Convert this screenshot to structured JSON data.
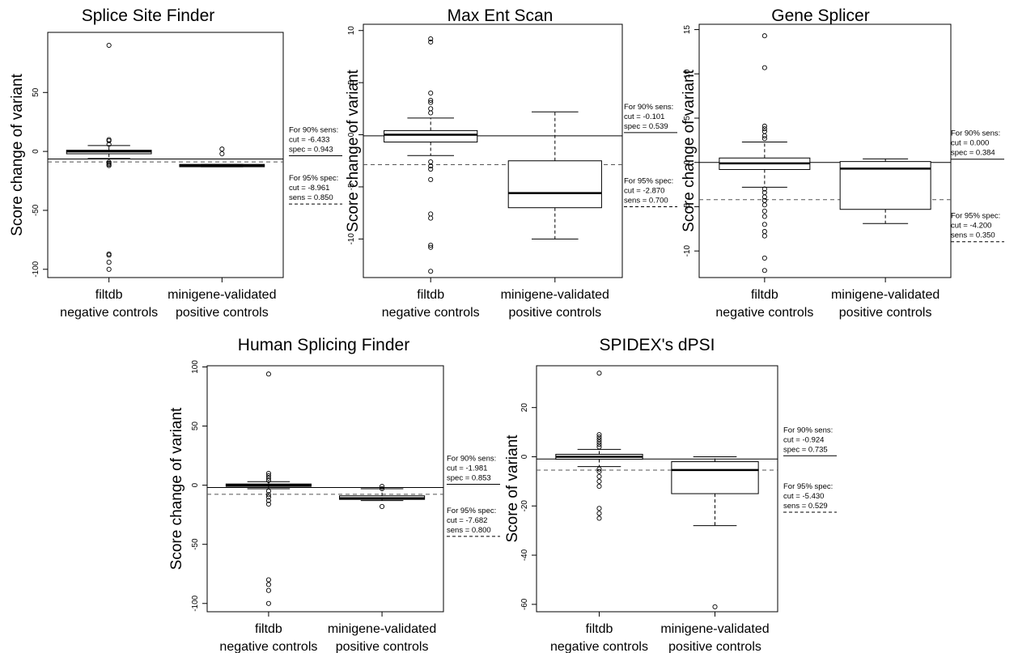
{
  "chart_data": [
    {
      "type": "box",
      "title": "Splice Site Finder",
      "ylabel": "Score change of variant",
      "ylim": [
        -107,
        101
      ],
      "yticks": [
        -100,
        -50,
        0,
        50
      ],
      "categories": [
        "filtdb\nnegative controls",
        "minigene-validated\npositive controls"
      ],
      "boxes": [
        {
          "lower_whisker": -6,
          "q1": -2,
          "median": 0,
          "q3": 1,
          "upper_whisker": 5,
          "outliers": [
            90,
            10,
            9,
            6,
            -9,
            -10,
            -11,
            -12,
            -87,
            -88,
            -94,
            -100
          ]
        },
        {
          "lower_whisker": -13,
          "q1": -13,
          "median": -12,
          "q3": -11,
          "upper_whisker": -11,
          "outliers": [
            2,
            -2
          ]
        }
      ],
      "cut_lines": [
        {
          "value": -6.433,
          "style": "solid"
        },
        {
          "value": -8.961,
          "style": "dashed"
        }
      ],
      "annotation_sens": [
        "For 90% sens:",
        "cut = -6.433",
        "spec = 0.943"
      ],
      "annotation_spec": [
        "For 95% spec:",
        "cut = -8.961",
        "sens = 0.850"
      ]
    },
    {
      "type": "box",
      "title": "Max Ent Scan",
      "ylabel": "Score change of variant",
      "ylim": [
        -13.7,
        10.6
      ],
      "yticks": [
        -10,
        -5,
        0,
        5,
        10
      ],
      "categories": [
        "filtdb\nnegative controls",
        "minigene-validated\npositive controls"
      ],
      "boxes": [
        {
          "lower_whisker": -2,
          "q1": -0.7,
          "median": 0,
          "q3": 0.4,
          "upper_whisker": 1.6,
          "outliers": [
            9.2,
            8.9,
            4,
            3.3,
            3.1,
            2.5,
            2.1,
            -2.6,
            -3,
            -3.3,
            -4.3,
            -7.6,
            -8,
            -10.6,
            -10.8,
            -13.1
          ]
        },
        {
          "lower_whisker": -10,
          "q1": -7,
          "median": -5.6,
          "q3": -2.5,
          "upper_whisker": 2.2,
          "outliers": []
        }
      ],
      "cut_lines": [
        {
          "value": -0.101,
          "style": "solid"
        },
        {
          "value": -2.87,
          "style": "dashed"
        }
      ],
      "annotation_sens": [
        "For 90% sens:",
        "cut = -0.101",
        "spec = 0.539"
      ],
      "annotation_spec": [
        "For 95% spec:",
        "cut = -2.870",
        "sens = 0.700"
      ]
    },
    {
      "type": "box",
      "title": "Gene Splicer",
      "ylabel": "Score change of variant",
      "ylim": [
        -13,
        15.6
      ],
      "yticks": [
        -10,
        -5,
        0,
        5,
        10,
        15
      ],
      "categories": [
        "filtdb\nnegative controls",
        "minigene-validated\npositive controls"
      ],
      "boxes": [
        {
          "lower_whisker": -2.8,
          "q1": -0.8,
          "median": -0.1,
          "q3": 0.5,
          "upper_whisker": 2.3,
          "outliers": [
            14.3,
            10.7,
            4.1,
            3.8,
            3.5,
            3,
            2.7,
            -3,
            -3.4,
            -3.9,
            -4.3,
            -4.8,
            -5.5,
            -6.1,
            -7,
            -7.8,
            -8.3,
            -10.8,
            -12.2
          ]
        },
        {
          "lower_whisker": -6.9,
          "q1": -5.3,
          "median": -0.7,
          "q3": 0.1,
          "upper_whisker": 0.4,
          "outliers": []
        }
      ],
      "cut_lines": [
        {
          "value": 0.0,
          "style": "solid"
        },
        {
          "value": -4.2,
          "style": "dashed"
        }
      ],
      "annotation_sens": [
        "For 90% sens:",
        "cut = 0.000",
        "spec = 0.384"
      ],
      "annotation_spec": [
        "For 95% spec:",
        "cut = -4.200",
        "sens = 0.350"
      ]
    },
    {
      "type": "box",
      "title": "Human Splicing Finder",
      "ylabel": "Score change of variant",
      "ylim": [
        -107,
        101
      ],
      "yticks": [
        -100,
        -50,
        0,
        50,
        100
      ],
      "categories": [
        "filtdb\nnegative controls",
        "minigene-validated\npositive controls"
      ],
      "boxes": [
        {
          "lower_whisker": -3,
          "q1": -1,
          "median": 0,
          "q3": 1,
          "upper_whisker": 3,
          "outliers": [
            94,
            10,
            8,
            6,
            4,
            -5,
            -8,
            -10,
            -13,
            -16,
            -80,
            -84,
            -89,
            -100
          ]
        },
        {
          "lower_whisker": -13,
          "q1": -12,
          "median": -11,
          "q3": -9,
          "upper_whisker": -3,
          "outliers": [
            -1,
            -3,
            -18
          ]
        }
      ],
      "cut_lines": [
        {
          "value": -1.981,
          "style": "solid"
        },
        {
          "value": -7.682,
          "style": "dashed"
        }
      ],
      "annotation_sens": [
        "For 90% sens:",
        "cut = -1.981",
        "spec = 0.853"
      ],
      "annotation_spec": [
        "For 95% spec:",
        "cut = -7.682",
        "sens = 0.800"
      ]
    },
    {
      "type": "box",
      "title": "SPIDEX's dPSI",
      "ylabel": "Score of variant",
      "ylim": [
        -63,
        37
      ],
      "yticks": [
        -60,
        -40,
        -20,
        0,
        20
      ],
      "categories": [
        "filtdb\nnegative controls",
        "minigene-validated\npositive controls"
      ],
      "boxes": [
        {
          "lower_whisker": -4,
          "q1": -1,
          "median": 0,
          "q3": 1,
          "upper_whisker": 3,
          "outliers": [
            34,
            9,
            8,
            7,
            6,
            5,
            4,
            -5,
            -6,
            -8,
            -10,
            -12,
            -21,
            -23,
            -25
          ]
        },
        {
          "lower_whisker": -28,
          "q1": -15,
          "median": -5.4,
          "q3": -2,
          "upper_whisker": 0,
          "outliers": [
            -61
          ]
        }
      ],
      "cut_lines": [
        {
          "value": -0.924,
          "style": "solid"
        },
        {
          "value": -5.43,
          "style": "dashed"
        }
      ],
      "annotation_sens": [
        "For 90% sens:",
        "cut = -0.924",
        "spec = 0.735"
      ],
      "annotation_spec": [
        "For 95% spec:",
        "cut = -5.430",
        "sens = 0.529"
      ]
    }
  ]
}
